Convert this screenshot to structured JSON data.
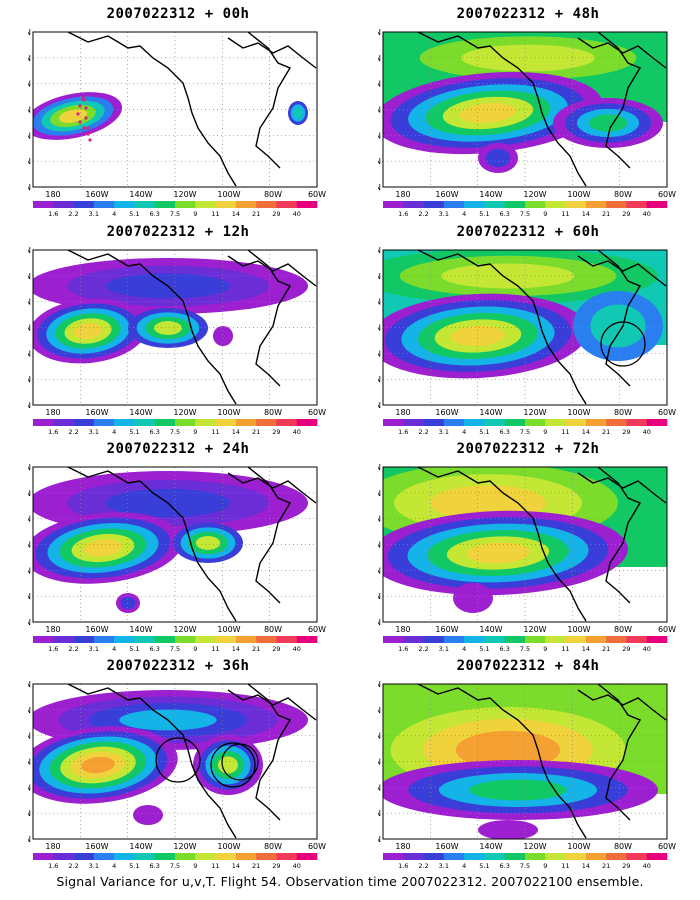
{
  "panels": [
    {
      "title": "2007022312 + 00h",
      "highlight": "flight-track"
    },
    {
      "title": "2007022312 + 48h",
      "highlight": "none"
    },
    {
      "title": "2007022312 + 12h",
      "highlight": "none"
    },
    {
      "title": "2007022312 + 60h",
      "highlight": "circle-east"
    },
    {
      "title": "2007022312 + 24h",
      "highlight": "none"
    },
    {
      "title": "2007022312 + 72h",
      "highlight": "none"
    },
    {
      "title": "2007022312 + 36h",
      "highlight": "circles-three"
    },
    {
      "title": "2007022312 + 84h",
      "highlight": "none"
    }
  ],
  "axes": {
    "lat_labels": [
      "70N",
      "60N",
      "50N",
      "40N",
      "30N",
      "20N",
      "10N"
    ],
    "lon_labels": [
      "180",
      "160W",
      "140W",
      "120W",
      "100W",
      "80W",
      "60W"
    ]
  },
  "colorbar": {
    "labels": [
      "1.6",
      "2.2",
      "3.1",
      "4",
      "5.1",
      "6.3",
      "7.5",
      "9",
      "11",
      "14",
      "21",
      "29",
      "40"
    ],
    "colors": [
      "#9c1fd0",
      "#6a2dd6",
      "#3a3ed8",
      "#2a7ef0",
      "#14b4e8",
      "#10c8b4",
      "#12c864",
      "#7cdc2c",
      "#c4e634",
      "#f0d23c",
      "#f5a032",
      "#f06e3c",
      "#f03a5a",
      "#e6007e"
    ]
  },
  "footer": "Signal Variance for u,v,T. Flight 54. Observation time 2007022312. 2007022100 ensemble."
}
